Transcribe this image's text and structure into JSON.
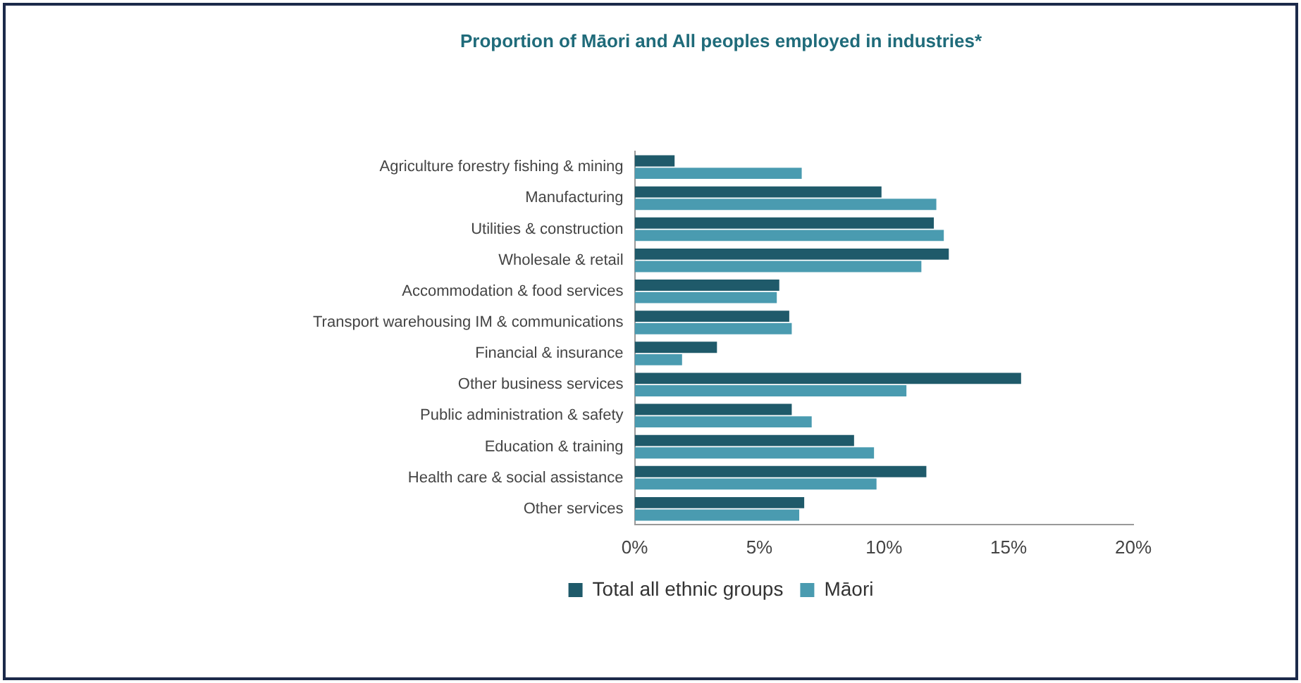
{
  "chart_data": {
    "type": "bar",
    "orientation": "horizontal",
    "title": "Proportion of Māori and All peoples employed in industries*",
    "categories": [
      "Agriculture forestry fishing & mining",
      "Manufacturing",
      "Utilities & construction",
      "Wholesale & retail",
      "Accommodation & food services",
      "Transport warehousing IM & communications",
      "Financial & insurance",
      "Other business services",
      "Public administration & safety",
      "Education & training",
      "Health care & social assistance",
      "Other services"
    ],
    "series": [
      {
        "name": "Total all ethnic groups",
        "color": "#1f5a6a",
        "values": [
          1.6,
          9.9,
          12.0,
          12.6,
          5.8,
          6.2,
          3.3,
          15.5,
          6.3,
          8.8,
          11.7,
          6.8
        ]
      },
      {
        "name": "Māori",
        "color": "#4a9bb0",
        "values": [
          6.7,
          12.1,
          12.4,
          11.5,
          5.7,
          6.3,
          1.9,
          10.9,
          7.1,
          9.6,
          9.7,
          6.6
        ]
      }
    ],
    "xlim": [
      0,
      20
    ],
    "xticks": [
      {
        "value": 0,
        "label": "0%"
      },
      {
        "value": 5,
        "label": "5%"
      },
      {
        "value": 10,
        "label": "10%"
      },
      {
        "value": 15,
        "label": "15%"
      },
      {
        "value": 20,
        "label": "20%"
      }
    ],
    "grid": false,
    "legend": "bottom"
  }
}
